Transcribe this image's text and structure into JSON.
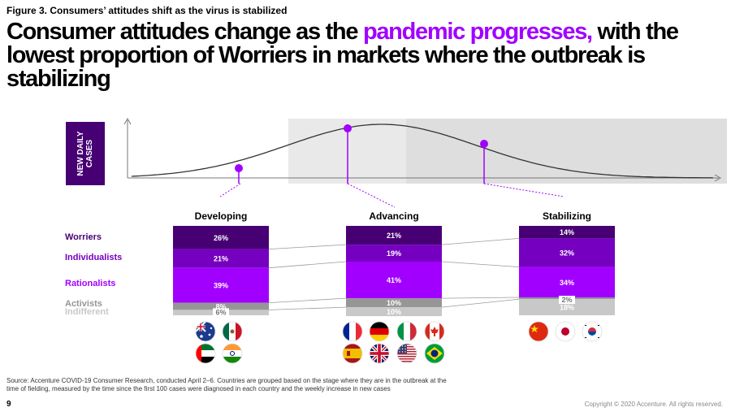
{
  "figure_label": "Figure 3. Consumers’ attitudes shift as the virus is stabilized",
  "headline": {
    "before": "Consumer attitudes change as the ",
    "highlight": "pandemic progresses,",
    "after": " with the lowest proportion of Worriers in markets where the outbreak is stabilizing"
  },
  "cases_box": {
    "line1": "NEW DAILY",
    "line2": "CASES"
  },
  "colors": {
    "accent": "#a100ff",
    "worriers": "#460073",
    "individualists": "#7500c0",
    "rationalists": "#a100ff",
    "activists": "#969696",
    "indifferent": "#c8c8c8",
    "stage_shade": "#e6e6e6"
  },
  "row_labels": {
    "worriers": "Worriers",
    "individualists": "Individualists",
    "rationalists": "Rationalists",
    "activists": "Activists",
    "indifferent": "Indifferent"
  },
  "chart_data": {
    "type": "bar",
    "stacked": true,
    "categories": [
      "Developing",
      "Advancing",
      "Stabilizing"
    ],
    "series": [
      {
        "name": "Worriers",
        "values": [
          26,
          21,
          14
        ],
        "labels": [
          "26%",
          "21%",
          "14%"
        ]
      },
      {
        "name": "Individualists",
        "values": [
          21,
          19,
          32
        ],
        "labels": [
          "21%",
          "19%",
          "32%"
        ]
      },
      {
        "name": "Rationalists",
        "values": [
          39,
          41,
          34
        ],
        "labels": [
          "39%",
          "41%",
          "34%"
        ]
      },
      {
        "name": "Activists",
        "values": [
          8,
          10,
          2
        ],
        "labels": [
          "8%",
          "10%",
          "2%"
        ]
      },
      {
        "name": "Indifferent",
        "values": [
          6,
          10,
          18
        ],
        "labels": [
          "6%",
          "10%",
          "18%"
        ]
      }
    ],
    "curve": {
      "description_hidden": true,
      "stage_points": [
        "Developing",
        "Advancing",
        "Stabilizing"
      ]
    }
  },
  "flags": {
    "Developing": [
      "Australia",
      "Mexico",
      "United Arab Emirates",
      "India"
    ],
    "Advancing": [
      "France",
      "Germany",
      "Italy",
      "Canada",
      "Spain",
      "United Kingdom",
      "United States",
      "Brazil"
    ],
    "Stabilizing": [
      "China",
      "Japan",
      "South Korea"
    ]
  },
  "source": "Source: Accenture COVID-19 Consumer Research, conducted April 2–6. Countries are grouped based on the stage where they are in the outbreak at the time of fielding, measured by the time since the first 100 cases were diagnosed in each country and the weekly increase in new cases",
  "page_number": "9",
  "copyright": "Copyright © 2020 Accenture. All rights reserved."
}
